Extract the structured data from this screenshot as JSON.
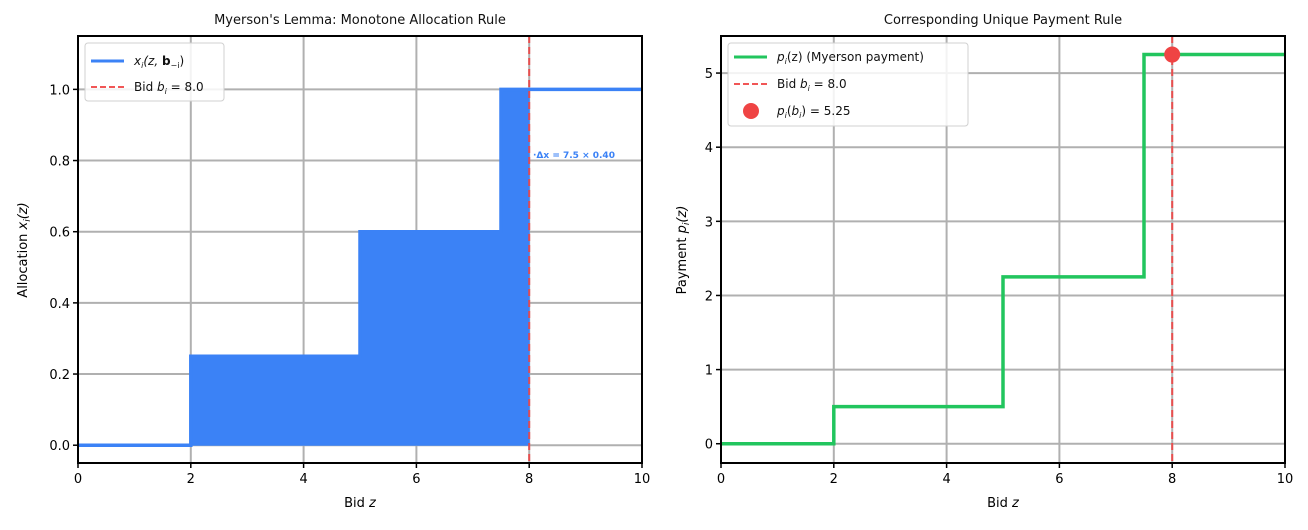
{
  "chart_data": [
    {
      "type": "line",
      "subtype": "step-with-fill",
      "title": "Myerson's Lemma: Monotone Allocation Rule",
      "xlabel": "Bid z",
      "ylabel": "Allocation x_i(z)",
      "xlim": [
        0,
        10
      ],
      "ylim": [
        -0.05,
        1.15
      ],
      "xticks": [
        0,
        2,
        4,
        6,
        8,
        10
      ],
      "yticks": [
        0.0,
        0.2,
        0.4,
        0.6,
        0.8,
        1.0
      ],
      "xtick_labels": [
        "0",
        "2",
        "4",
        "6",
        "8",
        "10"
      ],
      "ytick_labels": [
        "0.0",
        "0.2",
        "0.4",
        "0.6",
        "0.8",
        "1.0"
      ],
      "grid": true,
      "legend_position": "upper left",
      "series": [
        {
          "name": "x_i(z, b_-i)",
          "style": "step",
          "color": "#3b82f6",
          "x": [
            0,
            2,
            2,
            5,
            5,
            7.5,
            7.5,
            10
          ],
          "y": [
            0,
            0,
            0.25,
            0.25,
            0.6,
            0.6,
            1.0,
            1.0
          ]
        },
        {
          "name": "Bid b_i = 8.0",
          "style": "vline-dashed",
          "color": "#ef4444",
          "x": 8.0
        }
      ],
      "fill": {
        "color": "#3b82f6",
        "from_x": 2,
        "to_x": 8,
        "under_series": "x_i(z, b_-i)"
      },
      "annotations": [
        {
          "text": "·Δx = 7.5 × 0.40",
          "x": 8.05,
          "y": 0.81,
          "color": "#3b82f6"
        }
      ]
    },
    {
      "type": "line",
      "subtype": "step",
      "title": "Corresponding Unique Payment Rule",
      "xlabel": "Bid z",
      "ylabel": "Payment p_i(z)",
      "xlim": [
        0,
        10
      ],
      "ylim": [
        -0.26,
        5.5
      ],
      "xticks": [
        0,
        2,
        4,
        6,
        8,
        10
      ],
      "yticks": [
        0,
        1,
        2,
        3,
        4,
        5
      ],
      "xtick_labels": [
        "0",
        "2",
        "4",
        "6",
        "8",
        "10"
      ],
      "ytick_labels": [
        "0",
        "1",
        "2",
        "3",
        "4",
        "5"
      ],
      "grid": true,
      "legend_position": "upper left",
      "series": [
        {
          "name": "p_i(z) (Myerson payment)",
          "style": "step",
          "color": "#22c55e",
          "x": [
            0,
            2,
            2,
            5,
            5,
            7.5,
            7.5,
            10
          ],
          "y": [
            0,
            0,
            0.5,
            0.5,
            2.25,
            2.25,
            5.25,
            5.25
          ]
        },
        {
          "name": "Bid b_i = 8.0",
          "style": "vline-dashed",
          "color": "#ef4444",
          "x": 8.0
        },
        {
          "name": "p_i(b_i) = 5.25",
          "style": "marker",
          "color": "#ef4444",
          "x": [
            8.0
          ],
          "y": [
            5.25
          ]
        }
      ]
    }
  ],
  "left": {
    "title": "Myerson's Lemma: Monotone Allocation Rule",
    "xlabel_prefix": "Bid ",
    "xlabel_var": "z",
    "ylabel_prefix": "Allocation ",
    "ylabel_var": "x",
    "ylabel_sub": "i",
    "ylabel_suffix": "(z)",
    "legend": {
      "line_label_var": "x",
      "line_label_sub": "i",
      "line_label_rest": "(z, ",
      "line_label_bold": "b",
      "line_label_bold_sub": "−i",
      "line_label_close": ")",
      "bid_label_prefix": "Bid ",
      "bid_label_var": "b",
      "bid_label_sub": "i",
      "bid_label_value": " = 8.0"
    },
    "annotation": "·Δx = 7.5 × 0.40"
  },
  "right": {
    "title": "Corresponding Unique Payment Rule",
    "xlabel_prefix": "Bid ",
    "xlabel_var": "z",
    "ylabel_prefix": "Payment ",
    "ylabel_var": "p",
    "ylabel_sub": "i",
    "ylabel_suffix": "(z)",
    "legend": {
      "line_label_var": "p",
      "line_label_sub": "i",
      "line_label_rest": "(z) (Myerson payment)",
      "bid_label_prefix": "Bid ",
      "bid_label_var": "b",
      "bid_label_sub": "i",
      "bid_label_value": " = 8.0",
      "dot_label_var": "p",
      "dot_label_sub": "i",
      "dot_label_open": "(",
      "dot_label_bvar": "b",
      "dot_label_bsub": "i",
      "dot_label_value": ") = 5.25"
    }
  },
  "colors": {
    "allocation": "#3b82f6",
    "payment": "#22c55e",
    "bid": "#ef4444",
    "grid": "#b0b0b0",
    "axes": "#000000"
  }
}
